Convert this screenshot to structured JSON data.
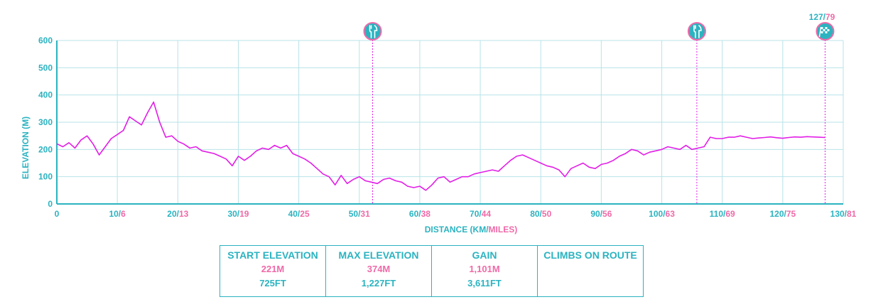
{
  "colors": {
    "teal": "#2bb3c0",
    "pink": "#ef6aa8",
    "line": "#e21ee6",
    "grid": "#b8e3e8"
  },
  "chart_data": {
    "type": "line",
    "xlabel_km": "DISTANCE (KM/",
    "xlabel_miles": "MILES)",
    "ylabel": "ELEVATION (M)",
    "ylim": [
      0,
      600
    ],
    "xlim": [
      0,
      130
    ],
    "grid": true,
    "y_ticks": [
      "0",
      "100",
      "200",
      "300",
      "400",
      "500",
      "600"
    ],
    "x_ticks": [
      {
        "km": "0",
        "mi": ""
      },
      {
        "km": "10/",
        "mi": "6"
      },
      {
        "km": "20/",
        "mi": "13"
      },
      {
        "km": "30/",
        "mi": "19"
      },
      {
        "km": "40/",
        "mi": "25"
      },
      {
        "km": "50/",
        "mi": "31"
      },
      {
        "km": "60/",
        "mi": "38"
      },
      {
        "km": "70/",
        "mi": "44"
      },
      {
        "km": "80/",
        "mi": "50"
      },
      {
        "km": "90/",
        "mi": "56"
      },
      {
        "km": "100/",
        "mi": "63"
      },
      {
        "km": "110/",
        "mi": "69"
      },
      {
        "km": "120/",
        "mi": "75"
      },
      {
        "km": "130/",
        "mi": "81"
      }
    ],
    "series": [
      {
        "x": [
          0,
          1,
          2,
          3,
          4,
          5,
          6,
          7,
          8,
          9,
          10,
          11,
          12,
          13,
          14,
          15,
          16,
          17,
          18,
          19,
          20,
          21,
          22,
          23,
          24,
          25,
          26,
          27,
          28,
          29,
          30,
          31,
          32,
          33,
          34,
          35,
          36,
          37,
          38,
          39,
          40,
          41,
          42,
          43,
          44,
          45,
          46,
          47,
          48,
          49,
          50,
          51,
          52,
          53,
          54,
          55,
          56,
          57,
          58,
          59,
          60,
          61,
          62,
          63,
          64,
          65,
          66,
          67,
          68,
          69,
          70,
          71,
          72,
          73,
          74,
          75,
          76,
          77,
          78,
          79,
          80,
          81,
          82,
          83,
          84,
          85,
          86,
          87,
          88,
          89,
          90,
          91,
          92,
          93,
          94,
          95,
          96,
          97,
          98,
          99,
          100,
          101,
          102,
          103,
          104,
          105,
          106,
          107,
          108,
          109,
          110,
          111,
          112,
          113,
          114,
          115,
          116,
          117,
          118,
          119,
          120,
          121,
          122,
          123,
          124,
          125,
          126,
          127
        ],
        "y": [
          221,
          210,
          225,
          205,
          235,
          250,
          220,
          180,
          210,
          240,
          255,
          270,
          320,
          305,
          290,
          335,
          374,
          300,
          245,
          250,
          230,
          220,
          205,
          210,
          195,
          190,
          185,
          175,
          165,
          140,
          175,
          160,
          175,
          195,
          205,
          200,
          215,
          205,
          215,
          185,
          175,
          165,
          150,
          130,
          110,
          100,
          70,
          105,
          75,
          90,
          100,
          85,
          80,
          75,
          90,
          95,
          85,
          80,
          65,
          60,
          65,
          50,
          70,
          95,
          100,
          80,
          90,
          100,
          100,
          110,
          115,
          120,
          125,
          120,
          140,
          160,
          175,
          180,
          170,
          160,
          150,
          140,
          135,
          125,
          100,
          130,
          140,
          150,
          135,
          130,
          145,
          150,
          160,
          175,
          185,
          200,
          195,
          180,
          190,
          195,
          200,
          210,
          205,
          200,
          215,
          200,
          205,
          210,
          245,
          240,
          240,
          245,
          245,
          250,
          245,
          240,
          242,
          244,
          246,
          243,
          241,
          244,
          246,
          245,
          247,
          246,
          245,
          244
        ]
      }
    ],
    "stop_markers": [
      {
        "km": 52.2,
        "icon": "fork-knife-icon"
      },
      {
        "km": 105.8,
        "icon": "fork-knife-icon"
      }
    ],
    "finish": {
      "km": 127.0,
      "icon": "checkered-flag-icon",
      "label_km": "127/",
      "label_miles": "79"
    }
  },
  "stats": {
    "start_elevation": {
      "header": "START ELEVATION",
      "m": "221M",
      "ft": "725FT"
    },
    "max_elevation": {
      "header": "MAX ELEVATION",
      "m": "374M",
      "ft": "1,227FT"
    },
    "gain": {
      "header": "GAIN",
      "m": "1,101M",
      "ft": "3,611FT"
    },
    "climbs": {
      "header": "CLIMBS ON ROUTE"
    }
  }
}
